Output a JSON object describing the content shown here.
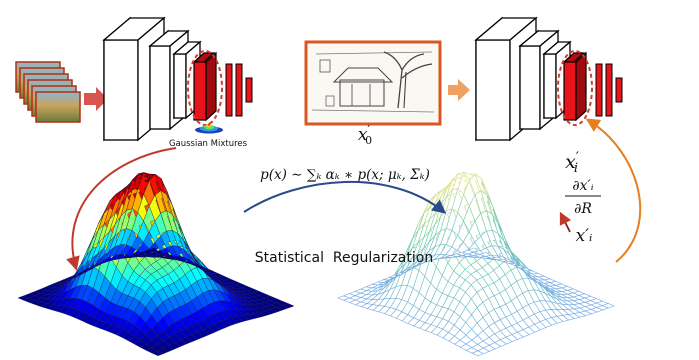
{
  "title": "",
  "left_network": {
    "caption": "Gaussian Mixtures"
  },
  "sketch_input": {
    "label_base": "x",
    "label_sub": "0",
    "label_prime": "′"
  },
  "right_network": {
    "label_base": "x",
    "label_sub": "i",
    "label_prime": "′"
  },
  "mixture_formula": "p(x) ∼ ∑ₖ αₖ ∗ p(x; μₖ, Σₖ)",
  "gradient": {
    "numerator": "∂x′ᵢ",
    "denominator": "∂R",
    "point_label": "x′ᵢ"
  },
  "center_label": "Statistical  Regularization",
  "colors": {
    "feature_map_red": "#e8141c",
    "arrow_red": "#c0392b",
    "arrow_orange": "#e67e22",
    "arrow_blue": "#2c4a8a",
    "photo_frame": "#d9581f",
    "dashed_ellipse": "#d63a2a",
    "colored_surface_palette": "jet",
    "wire_surface_palette": "light blue-green-yellow"
  },
  "icons": {
    "left_input": "stack-of-landscape-photos-icon",
    "sketch": "house-sketch-icon",
    "tiny_density": "gaussian-density-icon"
  }
}
